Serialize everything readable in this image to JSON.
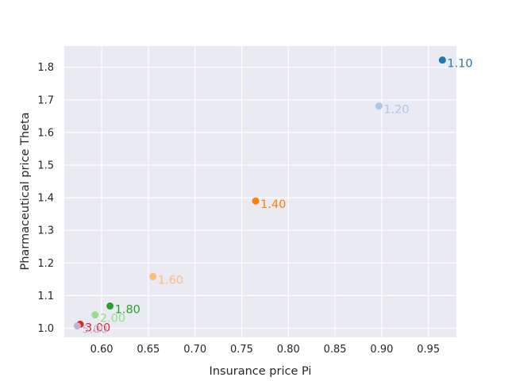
{
  "chart_data": {
    "type": "scatter",
    "title": "",
    "xlabel": "Insurance price Pi",
    "ylabel": "Pharmaceutical price Theta",
    "xlim": [
      0.56,
      0.98
    ],
    "ylim": [
      0.972,
      1.865
    ],
    "grid": true,
    "x_ticks": [
      {
        "value": 0.6,
        "label": "0.60"
      },
      {
        "value": 0.65,
        "label": "0.65"
      },
      {
        "value": 0.7,
        "label": "0.70"
      },
      {
        "value": 0.75,
        "label": "0.75"
      },
      {
        "value": 0.8,
        "label": "0.80"
      },
      {
        "value": 0.85,
        "label": "0.85"
      },
      {
        "value": 0.9,
        "label": "0.90"
      },
      {
        "value": 0.95,
        "label": "0.95"
      }
    ],
    "y_ticks": [
      {
        "value": 1.0,
        "label": "1.0"
      },
      {
        "value": 1.1,
        "label": "1.1"
      },
      {
        "value": 1.2,
        "label": "1.2"
      },
      {
        "value": 1.3,
        "label": "1.3"
      },
      {
        "value": 1.4,
        "label": "1.4"
      },
      {
        "value": 1.5,
        "label": "1.5"
      },
      {
        "value": 1.6,
        "label": "1.6"
      },
      {
        "value": 1.7,
        "label": "1.7"
      },
      {
        "value": 1.8,
        "label": "1.8"
      }
    ],
    "points": [
      {
        "x": 0.965,
        "y": 1.822,
        "label": "1.10",
        "color": "#1f77b4"
      },
      {
        "x": 0.897,
        "y": 1.681,
        "label": "1.20",
        "color": "#aec7e8"
      },
      {
        "x": 0.765,
        "y": 1.39,
        "label": "1.40",
        "color": "#ff7f0e"
      },
      {
        "x": 0.655,
        "y": 1.158,
        "label": "1.60",
        "color": "#ffbb78"
      },
      {
        "x": 0.609,
        "y": 1.068,
        "label": "1.80",
        "color": "#2ca02c"
      },
      {
        "x": 0.593,
        "y": 1.041,
        "label": "2.00",
        "color": "#98df8a"
      },
      {
        "x": 0.577,
        "y": 1.012,
        "label": "3.00",
        "color": "#d62728"
      },
      {
        "x": 0.574,
        "y": 1.007,
        "label": "5.00",
        "color": "#c5b0d5"
      }
    ]
  },
  "colors": {
    "plot_background": "#eaeaf2",
    "grid": "#ffffff",
    "text": "#262626"
  }
}
